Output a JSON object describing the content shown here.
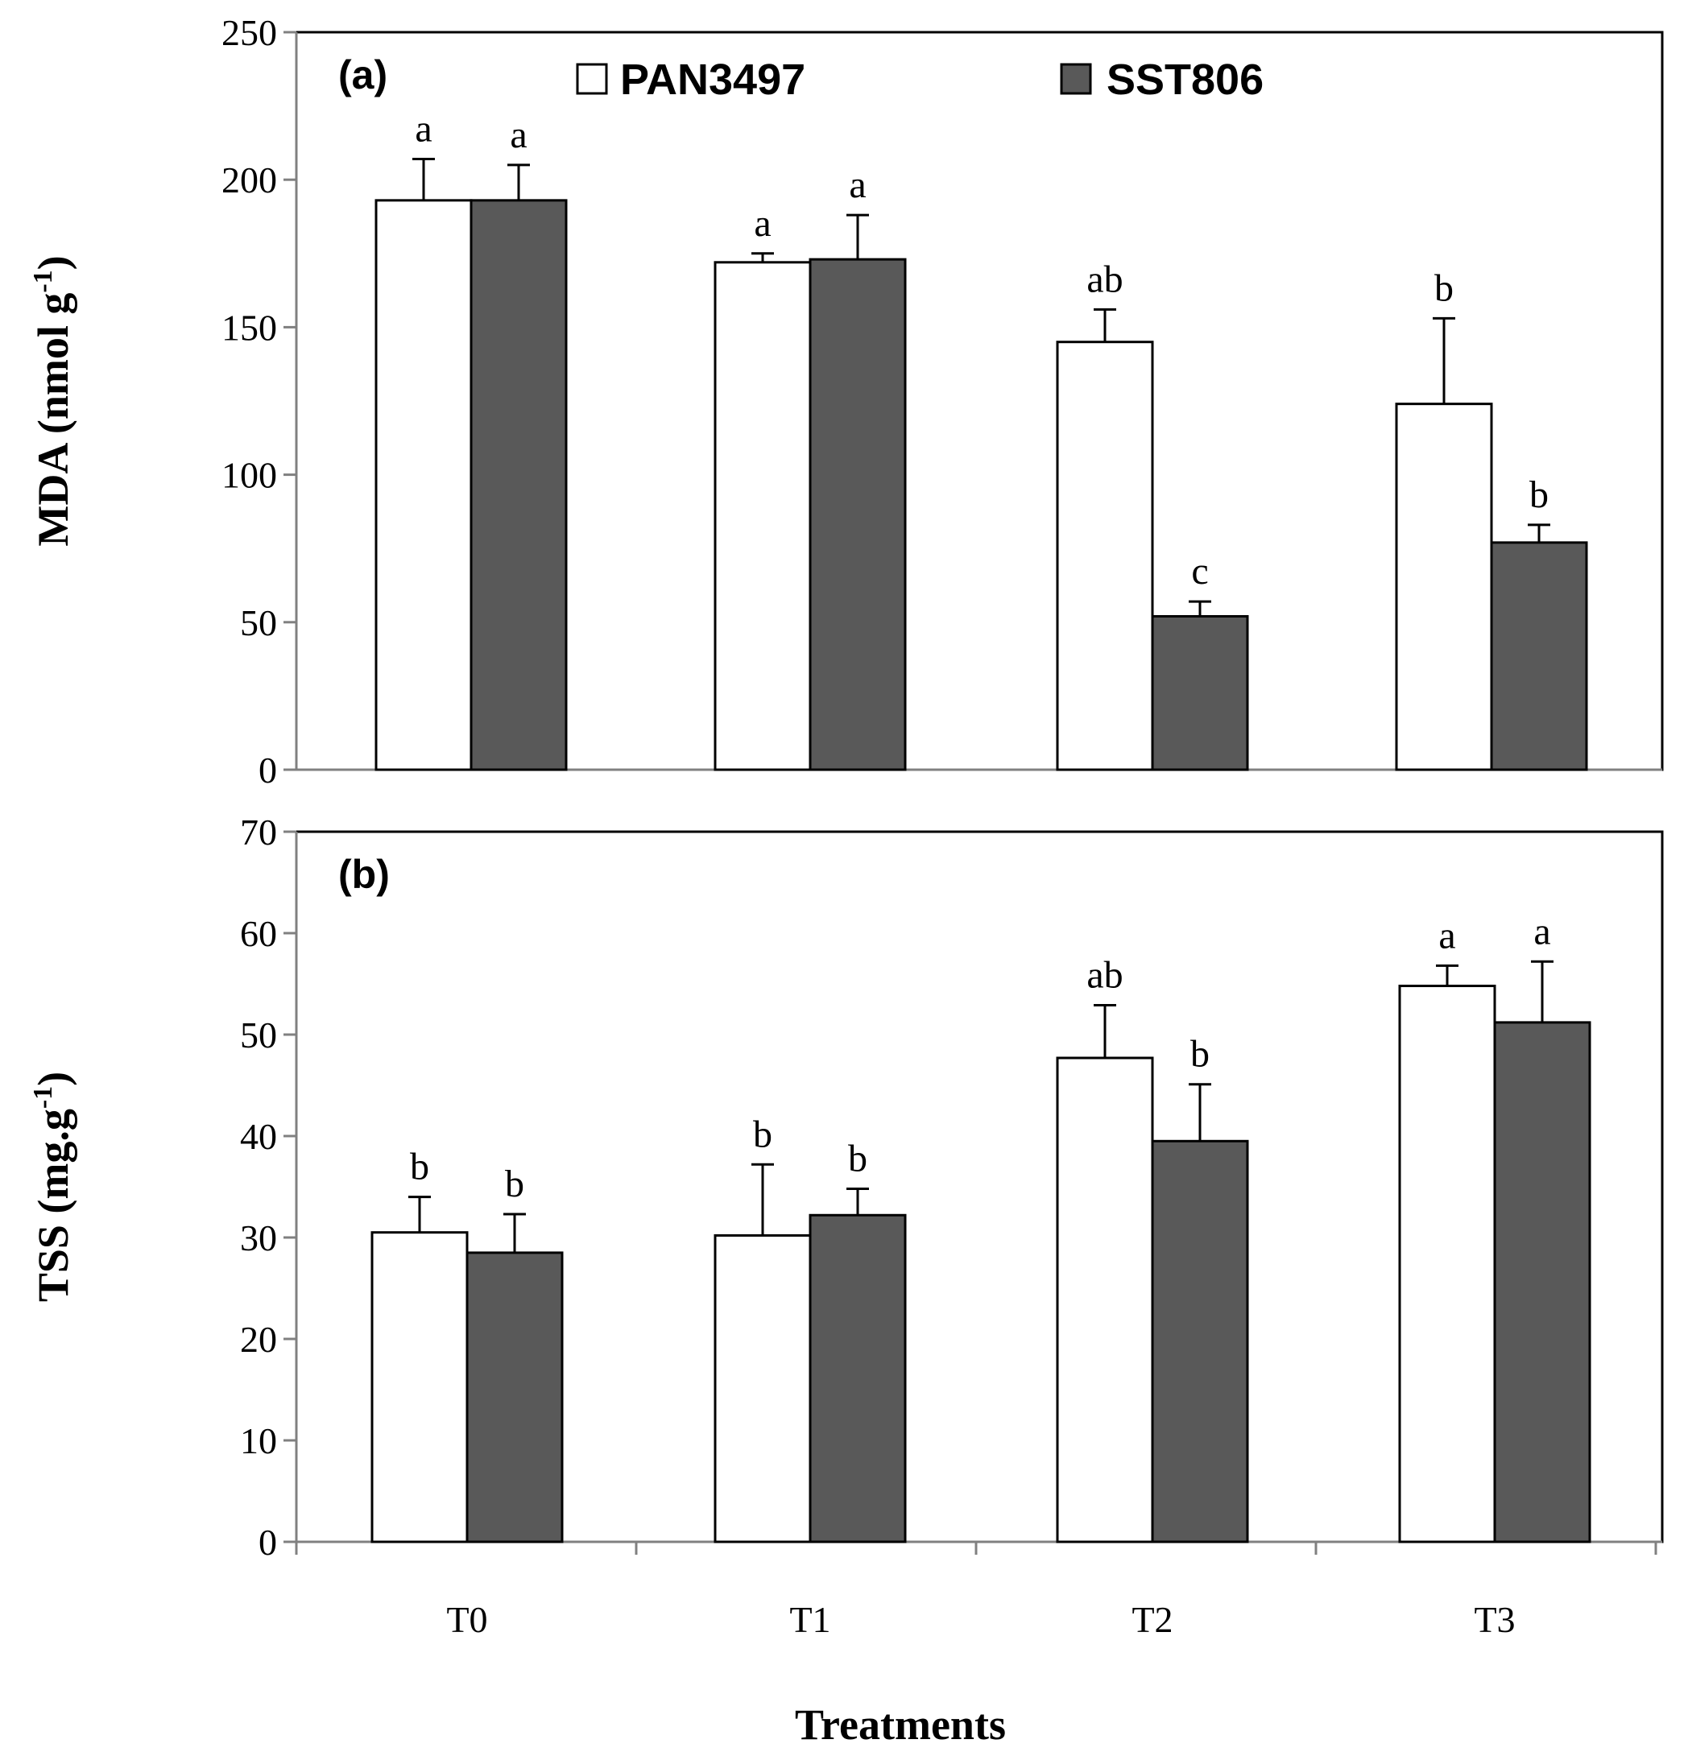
{
  "colors": {
    "PAN3497": "#ffffff",
    "SST806": "#595959",
    "axis": "#808080",
    "stroke": "#000000"
  },
  "chart_data": [
    {
      "type": "bar",
      "panel_label": "(a)",
      "categories": [
        "T0",
        "T1",
        "T2",
        "T3"
      ],
      "ylabel": "MDA (nmol g",
      "ylabel_sup": "-1",
      "ylabel_close": ")",
      "ylim": [
        0,
        250
      ],
      "yticks": [
        0,
        50,
        100,
        150,
        200,
        250
      ],
      "legend_position": "top",
      "series": [
        {
          "name": "PAN3497",
          "values": [
            193,
            172,
            145,
            124
          ],
          "errors": [
            14,
            3,
            11,
            29
          ],
          "letters": [
            "a",
            "a",
            "ab",
            "b"
          ]
        },
        {
          "name": "SST806",
          "values": [
            193,
            173,
            52,
            77
          ],
          "errors": [
            12,
            15,
            5,
            6
          ],
          "letters": [
            "a",
            "a",
            "c",
            "b"
          ]
        }
      ]
    },
    {
      "type": "bar",
      "panel_label": "(b)",
      "categories": [
        "T0",
        "T1",
        "T2",
        "T3"
      ],
      "xlabel": "Treatments",
      "ylabel": "TSS (mg.g",
      "ylabel_sup": "-1",
      "ylabel_close": ")",
      "ylim": [
        0,
        70
      ],
      "yticks": [
        0,
        10,
        20,
        30,
        40,
        50,
        60,
        70
      ],
      "series": [
        {
          "name": "PAN3497",
          "values": [
            30.5,
            30.2,
            47.7,
            54.8
          ],
          "errors": [
            3.5,
            7,
            5.2,
            2
          ],
          "letters": [
            "b",
            "b",
            "ab",
            "a"
          ]
        },
        {
          "name": "SST806",
          "values": [
            28.5,
            32.2,
            39.5,
            51.2
          ],
          "errors": [
            3.8,
            2.6,
            5.6,
            6
          ],
          "letters": [
            "b",
            "b",
            "b",
            "a"
          ]
        }
      ]
    }
  ]
}
